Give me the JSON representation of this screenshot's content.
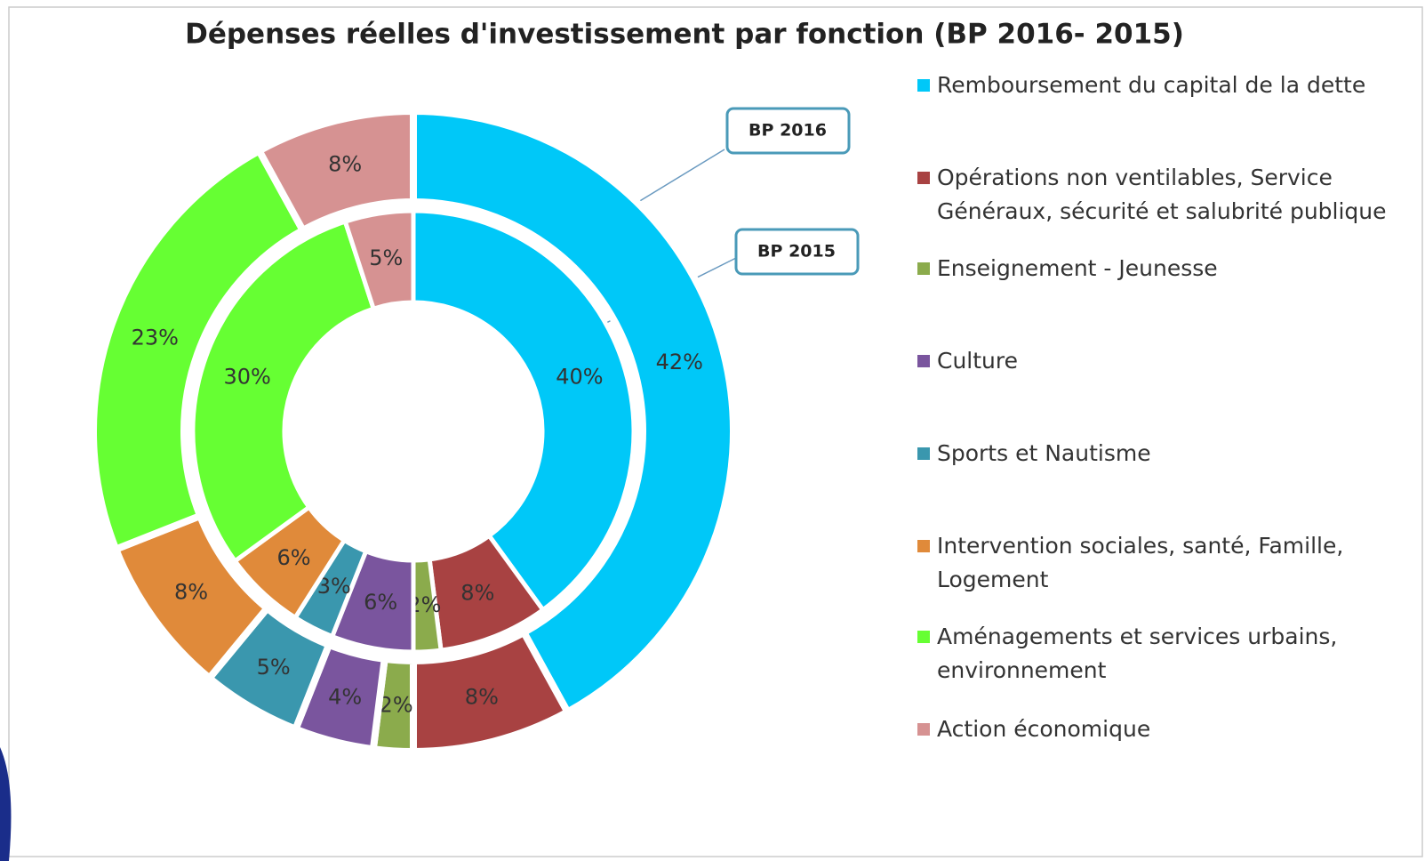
{
  "chart_data": {
    "type": "doughnut",
    "title": "Dépenses réelles d'investissement par  fonction (BP 2016- 2015)",
    "categories": [
      "Remboursement du capital de la dette",
      "Opérations non ventilables, Service Généraux, sécurité et salubrité publique",
      "Enseignement - Jeunesse",
      "Culture",
      "Sports et Nautisme",
      "Intervention sociales, santé, Famille, Logement",
      "Aménagements et services urbains, environnement",
      "Action économique"
    ],
    "colors": [
      "#00c8f8",
      "#a84242",
      "#8bab4c",
      "#7a559e",
      "#3a97ae",
      "#e08a3a",
      "#66ff33",
      "#d69292"
    ],
    "series": [
      {
        "name": "BP 2016",
        "values": [
          42,
          8,
          2,
          4,
          5,
          8,
          23,
          8
        ],
        "value_labels": [
          "42%",
          "8%",
          "2%",
          "4%",
          "5%",
          "8%",
          "23%",
          "8%"
        ]
      },
      {
        "name": "BP 2015",
        "values": [
          40,
          8,
          2,
          6,
          3,
          6,
          30,
          5
        ],
        "value_labels": [
          "40%",
          "8%",
          "2%",
          "6%",
          "3%",
          "6%",
          "30%",
          "5%"
        ]
      }
    ],
    "legend": "right"
  }
}
